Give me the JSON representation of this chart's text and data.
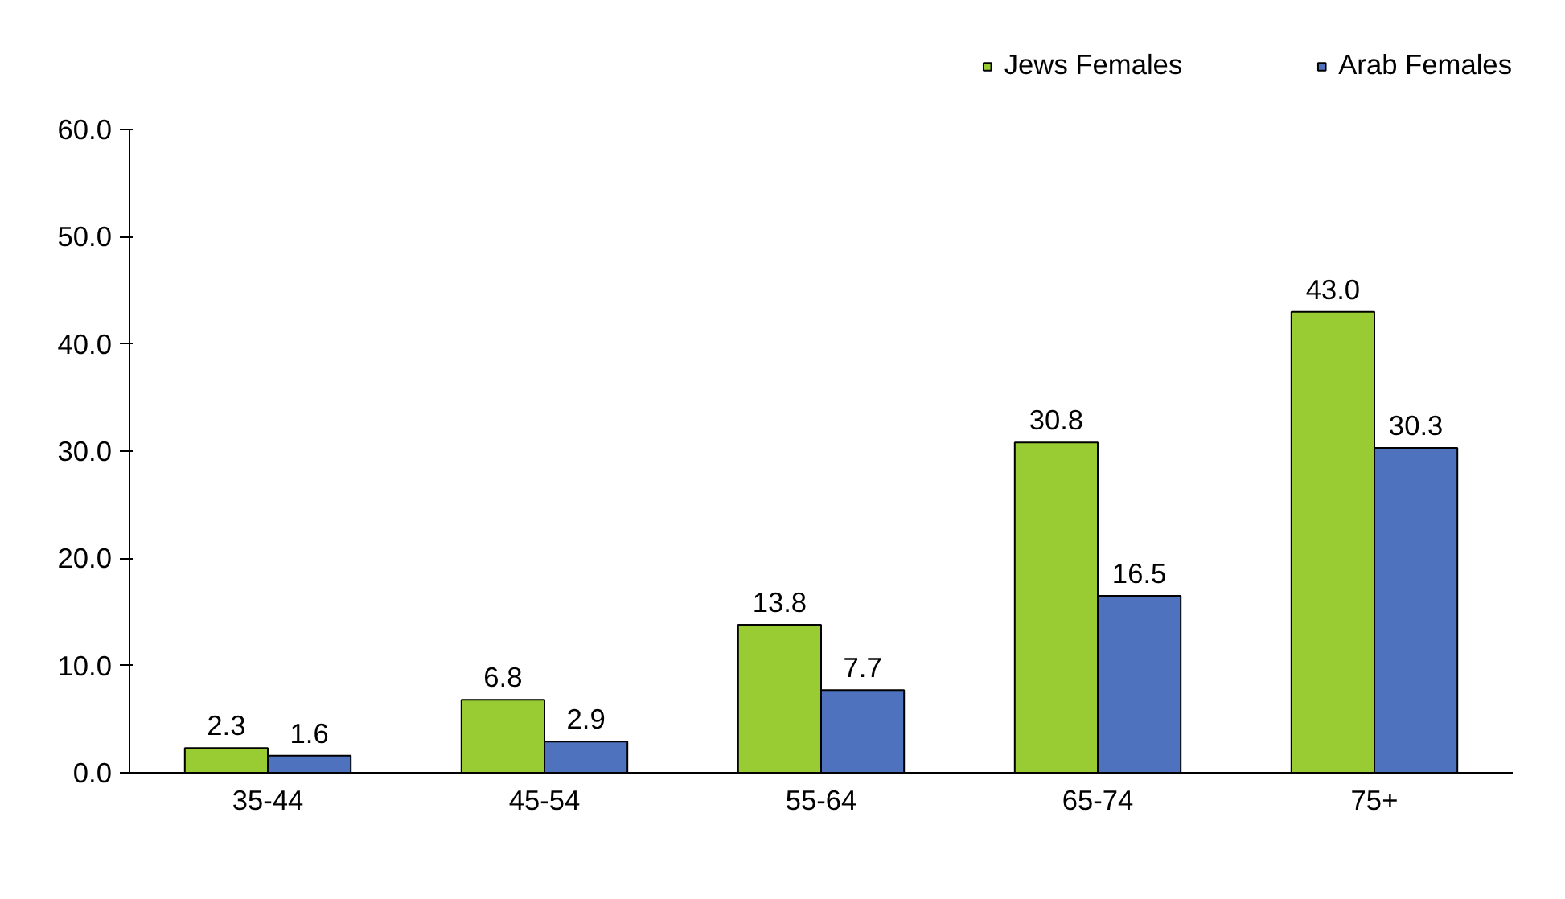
{
  "chart_data": {
    "type": "bar",
    "categories": [
      "35-44",
      "45-54",
      "55-64",
      "65-74",
      "75+"
    ],
    "series": [
      {
        "name": "Jews Females",
        "color": "#99cc33",
        "values": [
          2.3,
          6.8,
          13.8,
          30.8,
          43.0
        ],
        "value_labels": [
          "2.3",
          "6.8",
          "13.8",
          "30.8",
          "43.0"
        ]
      },
      {
        "name": "Arab Females",
        "color": "#4f72be",
        "values": [
          1.6,
          2.9,
          7.7,
          16.5,
          30.3
        ],
        "value_labels": [
          "1.6",
          "2.9",
          "7.7",
          "16.5",
          "30.3"
        ]
      }
    ],
    "ylim": [
      0,
      60
    ],
    "yticks": [
      {
        "value": 0,
        "label": "0.0"
      },
      {
        "value": 10,
        "label": "10.0"
      },
      {
        "value": 20,
        "label": "20.0"
      },
      {
        "value": 30,
        "label": "30.0"
      },
      {
        "value": 40,
        "label": "40.0"
      },
      {
        "value": 50,
        "label": "50.0"
      },
      {
        "value": 60,
        "label": "60.0"
      }
    ],
    "grid": false,
    "legend": "top right"
  }
}
